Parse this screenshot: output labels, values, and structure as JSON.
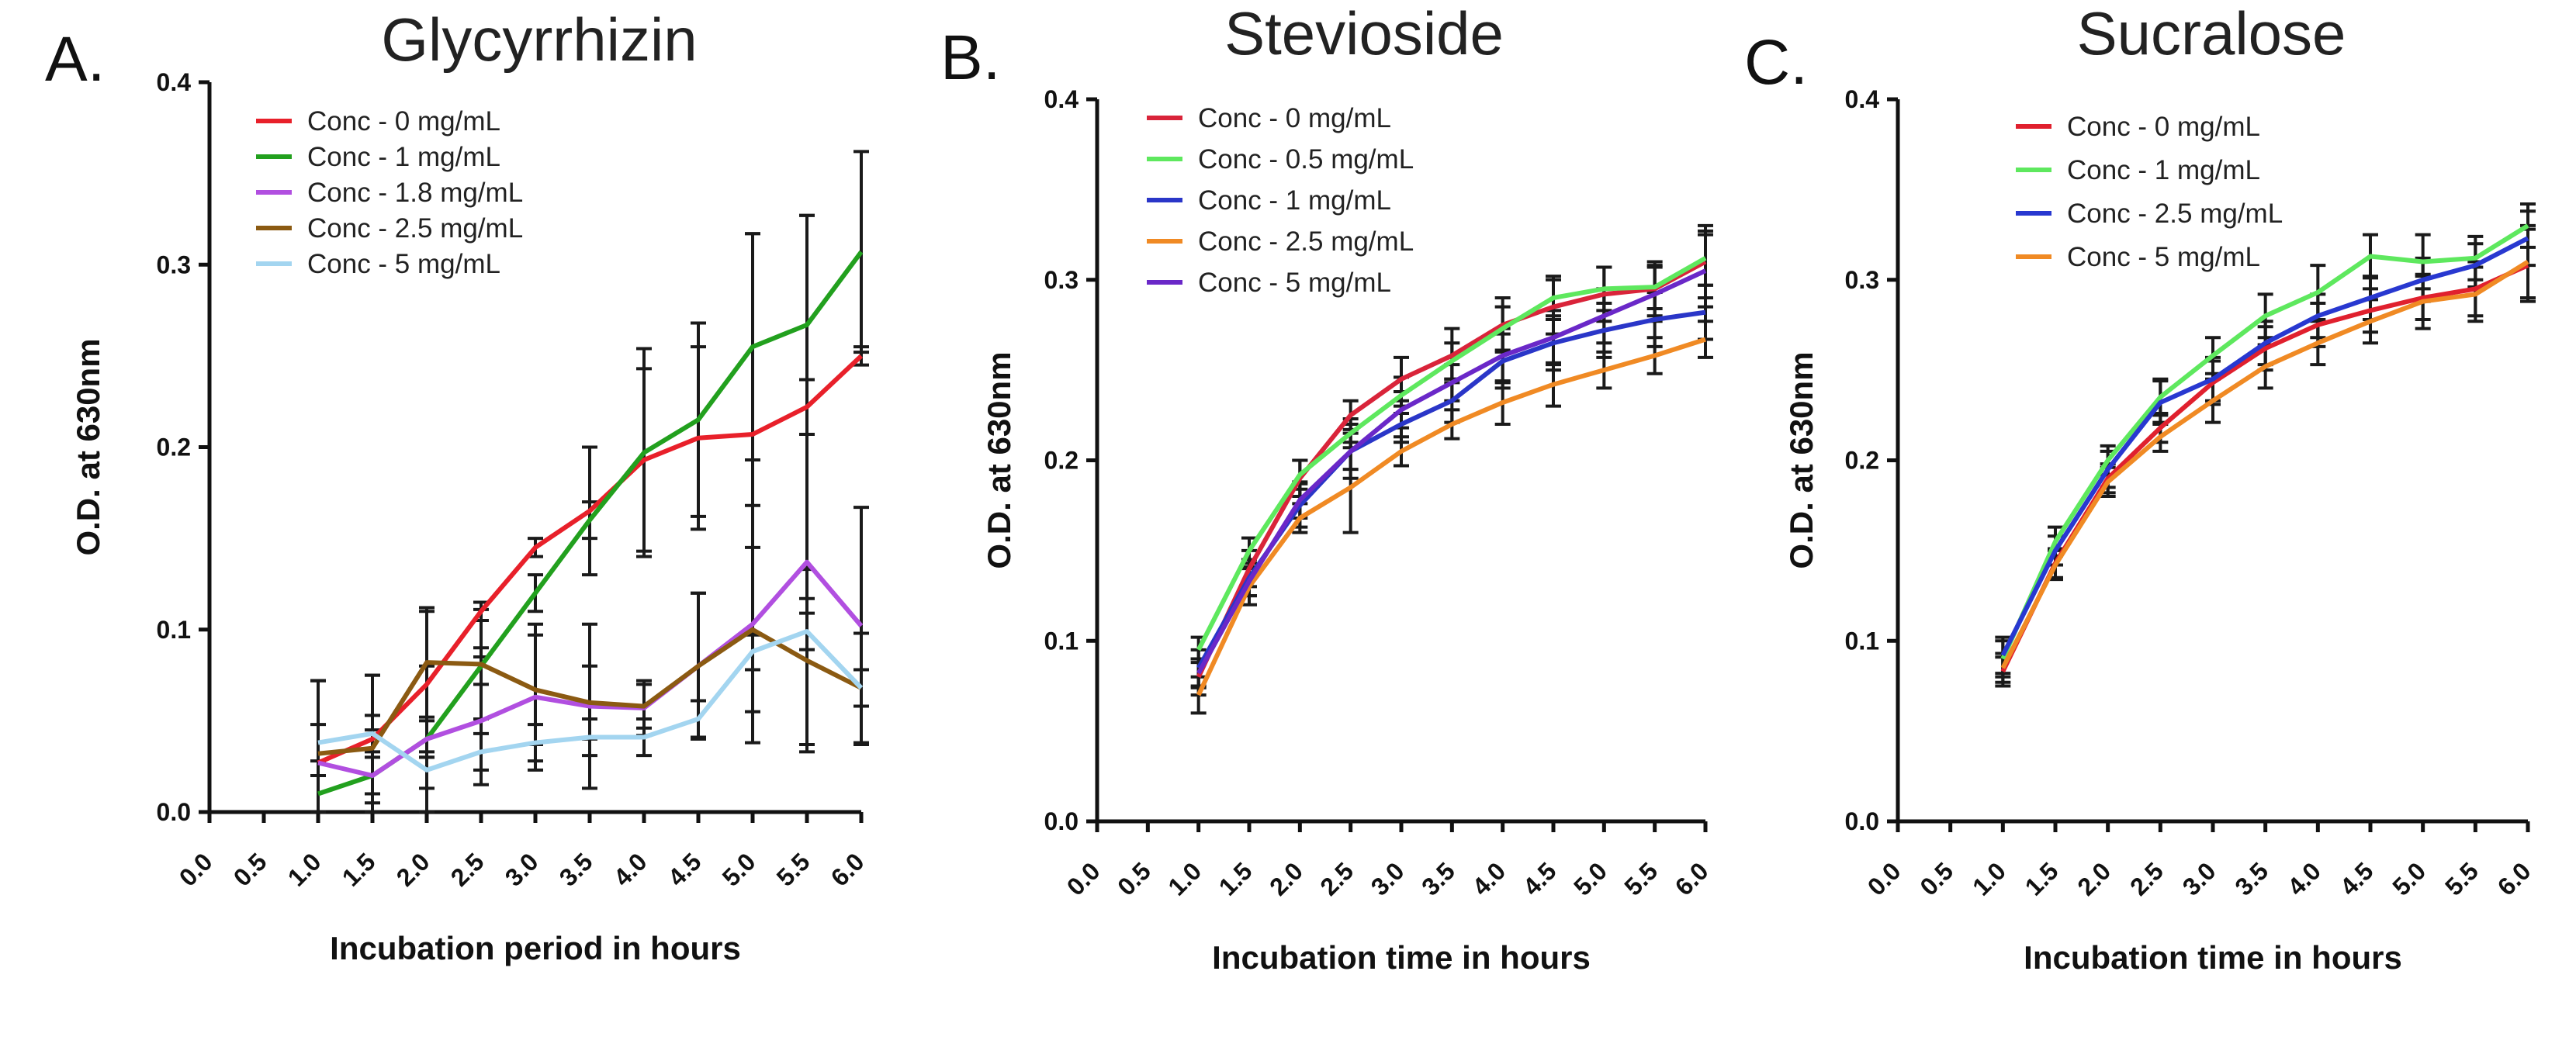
{
  "chart_data": [
    {
      "type": "line",
      "panel": "A.",
      "title": "Glycyrrhizin",
      "xlabel": "Incubation period in hours",
      "ylabel": "O.D. at 630nm",
      "x_ticks": [
        "0.0",
        "0.5",
        "1.0",
        "1.5",
        "2.0",
        "2.5",
        "3.0",
        "3.5",
        "4.0",
        "4.5",
        "5.0",
        "5.5",
        "6.0"
      ],
      "y_ticks": [
        "0.0",
        "0.1",
        "0.2",
        "0.3",
        "0.4"
      ],
      "xlim": [
        0,
        6
      ],
      "ylim": [
        0,
        0.4
      ],
      "legend_position": "top-left",
      "grid": false,
      "x": [
        1.0,
        1.5,
        2.0,
        2.5,
        3.0,
        3.5,
        4.0,
        4.5,
        5.0,
        5.5,
        6.0
      ],
      "series": [
        {
          "name": "Conc - 0 mg/mL",
          "color": "#e8202a",
          "values": [
            0.027,
            0.04,
            0.07,
            0.11,
            0.145,
            0.165,
            0.193,
            0.205,
            0.207,
            0.222,
            0.25
          ],
          "errors": [
            0.045,
            0.035,
            0.04,
            0.005,
            0.005,
            0.035,
            0.05,
            0.05,
            0.11,
            0.105,
            0.005
          ]
        },
        {
          "name": "Conc - 1  mg/mL",
          "color": "#22a01e",
          "values": [
            0.01,
            0.02,
            0.04,
            0.08,
            0.12,
            0.16,
            0.197,
            0.215,
            0.255,
            0.267,
            0.307
          ],
          "errors": [
            0.01,
            0.01,
            0.01,
            0.01,
            0.01,
            0.01,
            0.057,
            0.053,
            0.062,
            0.06,
            0.055
          ]
        },
        {
          "name": "Conc - 1.8  mg/mL",
          "color": "#b14fe0",
          "values": [
            0.027,
            0.02,
            0.04,
            0.05,
            0.063,
            0.058,
            0.057,
            0.08,
            0.103,
            0.137,
            0.102
          ],
          "errors": [
            0.045,
            0.025,
            0.04,
            0.035,
            0.04,
            0.045,
            0.015,
            0.04,
            0.065,
            0.1,
            0.065
          ]
        },
        {
          "name": "Conc - 2.5  mg/mL",
          "color": "#8b5a12",
          "values": [
            0.032,
            0.035,
            0.082,
            0.081,
            0.067,
            0.06,
            0.058,
            0.08,
            0.1,
            0.083,
            0.068
          ],
          "errors": [
            0.04,
            0.04,
            0.03,
            0.03,
            0.03,
            0.02,
            0.012,
            0.04,
            0.045,
            0.05,
            0.03
          ]
        },
        {
          "name": "Conc - 5  mg/mL",
          "color": "#a3d5f0",
          "values": [
            0.038,
            0.043,
            0.023,
            0.033,
            0.038,
            0.041,
            0.041,
            0.051,
            0.088,
            0.099,
            0.068
          ],
          "errors": [
            0.01,
            0.01,
            0.01,
            0.01,
            0.01,
            0.01,
            0.01,
            0.01,
            0.01,
            0.01,
            0.01
          ]
        }
      ]
    },
    {
      "type": "line",
      "panel": "B.",
      "title": "Stevioside",
      "xlabel": "Incubation time in hours",
      "ylabel": "O.D. at 630nm",
      "x_ticks": [
        "0.0",
        "0.5",
        "1.0",
        "1.5",
        "2.0",
        "2.5",
        "3.0",
        "3.5",
        "4.0",
        "4.5",
        "5.0",
        "5.5",
        "6.0"
      ],
      "y_ticks": [
        "0.0",
        "0.1",
        "0.2",
        "0.3",
        "0.4"
      ],
      "xlim": [
        0,
        6
      ],
      "ylim": [
        0,
        0.4
      ],
      "legend_position": "top-left",
      "grid": false,
      "x": [
        1.0,
        1.5,
        2.0,
        2.5,
        3.0,
        3.5,
        4.0,
        4.5,
        5.0,
        5.5,
        6.0
      ],
      "series": [
        {
          "name": "Conc - 0 mg/mL",
          "color": "#d9243a",
          "values": [
            0.08,
            0.14,
            0.19,
            0.225,
            0.245,
            0.258,
            0.275,
            0.285,
            0.292,
            0.295,
            0.31
          ],
          "errors": [
            0.01,
            0.01,
            0.01,
            0.008,
            0.012,
            0.015,
            0.015,
            0.015,
            0.015,
            0.015,
            0.02
          ]
        },
        {
          "name": "Conc -  0.5 mg/mL",
          "color": "#5ee85e",
          "values": [
            0.095,
            0.15,
            0.192,
            0.215,
            0.236,
            0.255,
            0.273,
            0.29,
            0.295,
            0.296,
            0.312
          ],
          "errors": [
            0.007,
            0.007,
            0.008,
            0.008,
            0.01,
            0.01,
            0.012,
            0.012,
            0.012,
            0.012,
            0.015
          ]
        },
        {
          "name": "Conc - 1 mg/mL",
          "color": "#2a36c8",
          "values": [
            0.085,
            0.135,
            0.175,
            0.205,
            0.22,
            0.233,
            0.255,
            0.265,
            0.272,
            0.278,
            0.282
          ],
          "errors": [
            0.01,
            0.01,
            0.012,
            0.015,
            0.01,
            0.012,
            0.015,
            0.015,
            0.015,
            0.015,
            0.015
          ]
        },
        {
          "name": "Conc - 2.5 mg/mL",
          "color": "#f08a24",
          "values": [
            0.07,
            0.13,
            0.168,
            0.185,
            0.205,
            0.22,
            0.232,
            0.242,
            0.25,
            0.258,
            0.267
          ],
          "errors": [
            0.01,
            0.01,
            0.008,
            0.025,
            0.008,
            0.008,
            0.012,
            0.012,
            0.01,
            0.01,
            0.01
          ]
        },
        {
          "name": "Conc - 5 mg/mL",
          "color": "#6a28c8",
          "values": [
            0.082,
            0.133,
            0.178,
            0.205,
            0.228,
            0.243,
            0.258,
            0.268,
            0.28,
            0.292,
            0.305
          ],
          "errors": [
            0.008,
            0.008,
            0.01,
            0.01,
            0.01,
            0.01,
            0.015,
            0.015,
            0.015,
            0.015,
            0.02
          ]
        }
      ]
    },
    {
      "type": "line",
      "panel": "C.",
      "title": "Sucralose",
      "xlabel": "Incubation time in hours",
      "ylabel": "O.D. at 630nm",
      "x_ticks": [
        "0.0",
        "0.5",
        "1.0",
        "1.5",
        "2.0",
        "2.5",
        "3.0",
        "3.5",
        "4.0",
        "4.5",
        "5.0",
        "5.5",
        "6.0"
      ],
      "y_ticks": [
        "0.0",
        "0.1",
        "0.2",
        "0.3",
        "0.4"
      ],
      "xlim": [
        0,
        6
      ],
      "ylim": [
        0,
        0.4
      ],
      "legend_position": "top-left",
      "grid": false,
      "x": [
        1.0,
        1.5,
        2.0,
        2.5,
        3.0,
        3.5,
        4.0,
        4.5,
        5.0,
        5.5,
        6.0
      ],
      "series": [
        {
          "name": "Conc - 0 mg/mL",
          "color": "#e0202e",
          "values": [
            0.083,
            0.143,
            0.19,
            0.218,
            0.243,
            0.262,
            0.275,
            0.283,
            0.29,
            0.295,
            0.308
          ],
          "errors": [
            0.008,
            0.008,
            0.008,
            0.008,
            0.012,
            0.012,
            0.012,
            0.012,
            0.012,
            0.015,
            0.02
          ]
        },
        {
          "name": "Conc -  1 mg/mL",
          "color": "#5ee85e",
          "values": [
            0.09,
            0.155,
            0.2,
            0.235,
            0.258,
            0.28,
            0.293,
            0.313,
            0.31,
            0.312,
            0.33
          ],
          "errors": [
            0.01,
            0.008,
            0.008,
            0.01,
            0.01,
            0.012,
            0.015,
            0.012,
            0.015,
            0.012,
            0.012
          ]
        },
        {
          "name": "Conc - 2.5 mg/mL",
          "color": "#2838d0",
          "values": [
            0.092,
            0.15,
            0.195,
            0.232,
            0.245,
            0.265,
            0.28,
            0.29,
            0.3,
            0.308,
            0.323
          ],
          "errors": [
            0.01,
            0.008,
            0.01,
            0.012,
            0.012,
            0.012,
            0.012,
            0.012,
            0.012,
            0.012,
            0.015
          ]
        },
        {
          "name": "Conc - 5 mg/mL",
          "color": "#f08a24",
          "values": [
            0.085,
            0.142,
            0.188,
            0.213,
            0.233,
            0.252,
            0.265,
            0.277,
            0.288,
            0.292,
            0.31
          ],
          "errors": [
            0.008,
            0.008,
            0.008,
            0.008,
            0.012,
            0.012,
            0.012,
            0.012,
            0.015,
            0.015,
            0.02
          ]
        }
      ]
    }
  ]
}
